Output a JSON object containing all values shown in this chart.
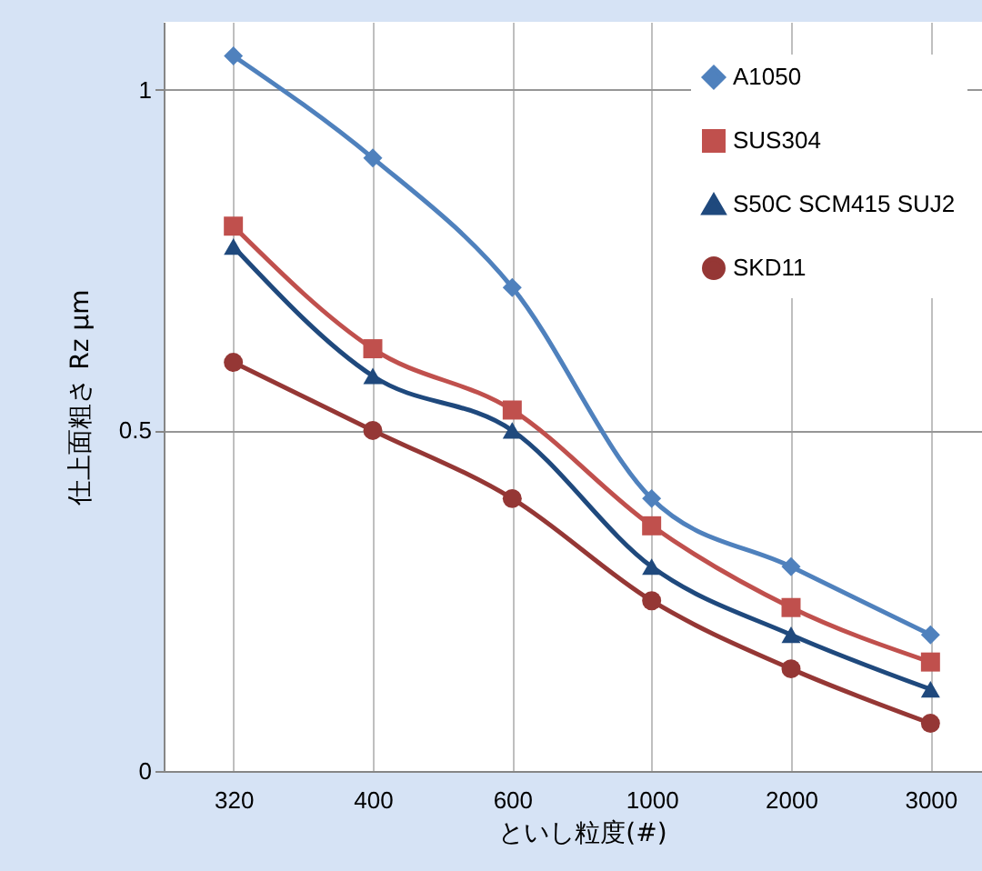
{
  "chart_data": {
    "type": "line",
    "xlabel": "といし粒度(#)",
    "ylabel": "仕上面粗さ Rz μm",
    "categories": [
      "320",
      "400",
      "600",
      "1000",
      "2000",
      "3000"
    ],
    "series": [
      {
        "name": "A1050",
        "color": "#4f81bd",
        "marker": "diamond",
        "values": [
          1.05,
          0.9,
          0.71,
          0.4,
          0.3,
          0.2
        ]
      },
      {
        "name": "SUS304",
        "color": "#c0504d",
        "marker": "square",
        "values": [
          0.8,
          0.62,
          0.53,
          0.36,
          0.24,
          0.16
        ]
      },
      {
        "name": "S50C SCM415 SUJ2",
        "color": "#1f497d",
        "marker": "triangle",
        "values": [
          0.77,
          0.58,
          0.5,
          0.3,
          0.2,
          0.12
        ]
      },
      {
        "name": "SKD11",
        "color": "#953735",
        "marker": "circle",
        "values": [
          0.6,
          0.5,
          0.4,
          0.25,
          0.15,
          0.07
        ]
      }
    ],
    "ylim": [
      0,
      1.1
    ],
    "yticks": [
      0,
      0.5,
      1
    ],
    "grid": true,
    "legend": "top right"
  }
}
